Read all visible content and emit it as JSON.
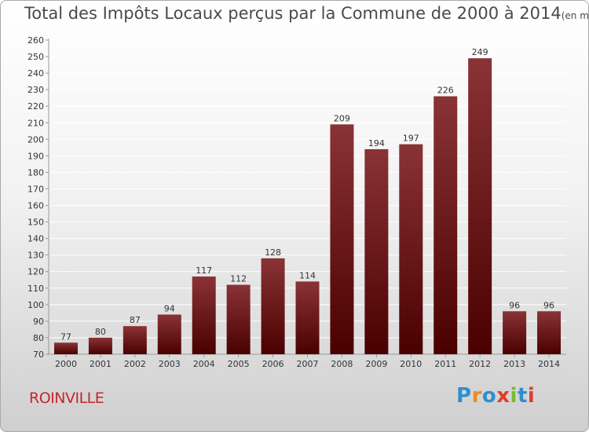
{
  "title": "Total des Impôts Locaux perçus par la Commune de 2000 à 2014",
  "title_unit": "(en milliers d'€)",
  "commune": "ROINVILLE",
  "logo": {
    "letters": [
      "P",
      "r",
      "o",
      "x",
      "i",
      "t",
      "i"
    ],
    "colors": [
      "#2e8fd0",
      "#ee8a1c",
      "#2e8fd0",
      "#e23c2b",
      "#7cb82f",
      "#2e8fd0",
      "#e23c2b"
    ]
  },
  "colors": {
    "bar_top": "#8a3336",
    "bar_bottom": "#4a0000",
    "axis": "#999999",
    "grid": "#ffffff"
  },
  "chart_data": {
    "type": "bar",
    "categories": [
      "2000",
      "2001",
      "2002",
      "2003",
      "2004",
      "2005",
      "2006",
      "2007",
      "2008",
      "2009",
      "2010",
      "2011",
      "2012",
      "2013",
      "2014"
    ],
    "values": [
      77,
      80,
      87,
      94,
      117,
      112,
      128,
      114,
      209,
      194,
      197,
      226,
      249,
      96,
      96
    ],
    "ylim": [
      70,
      260
    ],
    "yticks": [
      70,
      80,
      90,
      100,
      110,
      120,
      130,
      140,
      150,
      160,
      170,
      180,
      190,
      200,
      210,
      220,
      230,
      240,
      250,
      260
    ],
    "xlabel": "",
    "ylabel": "",
    "grid": true
  }
}
